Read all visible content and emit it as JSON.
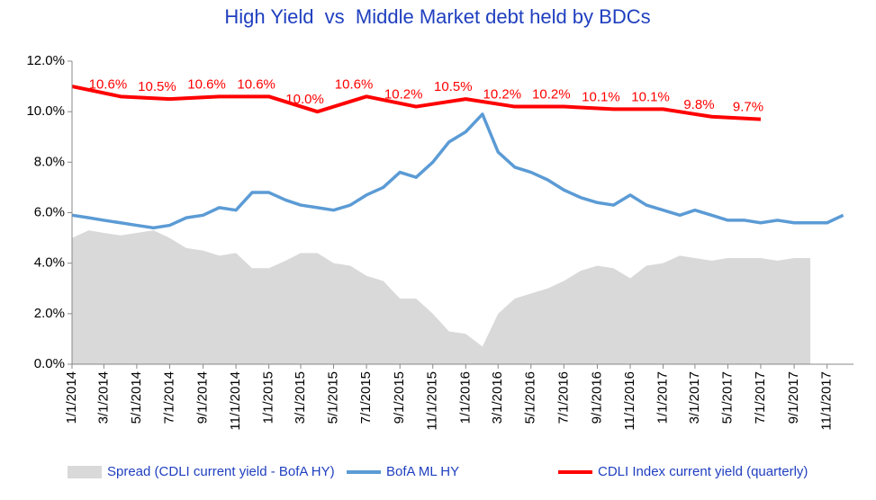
{
  "chart_data": {
    "type": "line",
    "title": "High Yield  vs  Middle Market debt held by BDCs",
    "x": [
      "2014-01-01",
      "2014-02-01",
      "2014-03-01",
      "2014-04-01",
      "2014-05-01",
      "2014-06-01",
      "2014-07-01",
      "2014-08-01",
      "2014-09-01",
      "2014-10-01",
      "2014-11-01",
      "2014-12-01",
      "2015-01-01",
      "2015-02-01",
      "2015-03-01",
      "2015-04-01",
      "2015-05-01",
      "2015-06-01",
      "2015-07-01",
      "2015-08-01",
      "2015-09-01",
      "2015-10-01",
      "2015-11-01",
      "2015-12-01",
      "2016-01-01",
      "2016-02-01",
      "2016-03-01",
      "2016-04-01",
      "2016-05-01",
      "2016-06-01",
      "2016-07-01",
      "2016-08-01",
      "2016-09-01",
      "2016-10-01",
      "2016-11-01",
      "2016-12-01",
      "2017-01-01",
      "2017-02-01",
      "2017-03-01",
      "2017-04-01",
      "2017-05-01",
      "2017-06-01",
      "2017-07-01",
      "2017-08-01",
      "2017-09-01",
      "2017-10-01",
      "2017-11-01",
      "2017-12-01"
    ],
    "series": [
      {
        "name": "Spread (CDLI current yield - BofA HY)",
        "kind": "area",
        "color": "#d9d9d9",
        "values": [
          5.0,
          5.3,
          5.2,
          5.1,
          5.2,
          5.3,
          5.0,
          4.6,
          4.5,
          4.3,
          4.4,
          3.8,
          3.8,
          4.1,
          4.4,
          4.4,
          4.0,
          3.9,
          3.5,
          3.3,
          2.6,
          2.6,
          2.0,
          1.3,
          1.2,
          0.7,
          2.0,
          2.6,
          2.8,
          3.0,
          3.3,
          3.7,
          3.9,
          3.8,
          3.4,
          3.9,
          4.0,
          4.3,
          4.2,
          4.1,
          4.2,
          4.2,
          4.2,
          4.1,
          4.2,
          4.2,
          null,
          null
        ]
      },
      {
        "name": "BofA ML HY",
        "kind": "line",
        "color": "#5b9bd5",
        "values": [
          5.9,
          5.8,
          5.7,
          5.6,
          5.5,
          5.4,
          5.5,
          5.8,
          5.9,
          6.2,
          6.1,
          6.8,
          6.8,
          6.5,
          6.3,
          6.2,
          6.1,
          6.3,
          6.7,
          7.0,
          7.6,
          7.4,
          8.0,
          8.8,
          9.2,
          9.9,
          8.4,
          7.8,
          7.6,
          7.3,
          6.9,
          6.6,
          6.4,
          6.3,
          6.7,
          6.3,
          6.1,
          5.9,
          6.1,
          5.9,
          5.7,
          5.7,
          5.6,
          5.7,
          5.6,
          5.6,
          5.6,
          5.9
        ]
      },
      {
        "name": "CDLI Index current yield (quarterly)",
        "kind": "line",
        "color": "#ff0000",
        "x": [
          "2014-01-01",
          "2014-04-01",
          "2014-07-01",
          "2014-10-01",
          "2015-01-01",
          "2015-04-01",
          "2015-07-01",
          "2015-10-01",
          "2016-01-01",
          "2016-04-01",
          "2016-07-01",
          "2016-10-01",
          "2017-01-01",
          "2017-04-01",
          "2017-07-01"
        ],
        "values": [
          11.0,
          10.6,
          10.5,
          10.6,
          10.6,
          10.0,
          10.6,
          10.2,
          10.5,
          10.2,
          10.2,
          10.1,
          10.1,
          9.8,
          9.7
        ],
        "value_labels": [
          null,
          "10.6%",
          "10.5%",
          "10.6%",
          "10.6%",
          "10.0%",
          "10.6%",
          "10.2%",
          "10.5%",
          "10.2%",
          "10.2%",
          "10.1%",
          "10.1%",
          "9.8%",
          "9.7%"
        ]
      }
    ],
    "xlim": [
      "2014-01-01",
      "2017-12-20"
    ],
    "xticks": [
      {
        "value": "2014-01-01",
        "label": "1/1/2014"
      },
      {
        "value": "2014-03-01",
        "label": "3/1/2014"
      },
      {
        "value": "2014-05-01",
        "label": "5/1/2014"
      },
      {
        "value": "2014-07-01",
        "label": "7/1/2014"
      },
      {
        "value": "2014-09-01",
        "label": "9/1/2014"
      },
      {
        "value": "2014-11-01",
        "label": "11/1/2014"
      },
      {
        "value": "2015-01-01",
        "label": "1/1/2015"
      },
      {
        "value": "2015-03-01",
        "label": "3/1/2015"
      },
      {
        "value": "2015-05-01",
        "label": "5/1/2015"
      },
      {
        "value": "2015-07-01",
        "label": "7/1/2015"
      },
      {
        "value": "2015-09-01",
        "label": "9/1/2015"
      },
      {
        "value": "2015-11-01",
        "label": "11/1/2015"
      },
      {
        "value": "2016-01-01",
        "label": "1/1/2016"
      },
      {
        "value": "2016-03-01",
        "label": "3/1/2016"
      },
      {
        "value": "2016-05-01",
        "label": "5/1/2016"
      },
      {
        "value": "2016-07-01",
        "label": "7/1/2016"
      },
      {
        "value": "2016-09-01",
        "label": "9/1/2016"
      },
      {
        "value": "2016-11-01",
        "label": "11/1/2016"
      },
      {
        "value": "2017-01-01",
        "label": "1/1/2017"
      },
      {
        "value": "2017-03-01",
        "label": "3/1/2017"
      },
      {
        "value": "2017-05-01",
        "label": "5/1/2017"
      },
      {
        "value": "2017-07-01",
        "label": "7/1/2017"
      },
      {
        "value": "2017-09-01",
        "label": "9/1/2017"
      },
      {
        "value": "2017-11-01",
        "label": "11/1/2017"
      }
    ],
    "ylim": [
      0,
      12
    ],
    "yticks": [
      {
        "value": 0,
        "label": "0.0%"
      },
      {
        "value": 2,
        "label": "2.0%"
      },
      {
        "value": 4,
        "label": "4.0%"
      },
      {
        "value": 6,
        "label": "6.0%"
      },
      {
        "value": 8,
        "label": "8.0%"
      },
      {
        "value": 10,
        "label": "10.0%"
      },
      {
        "value": 12,
        "label": "12.0%"
      }
    ],
    "title_color": "#1f3fbf",
    "legend": "bottom"
  }
}
